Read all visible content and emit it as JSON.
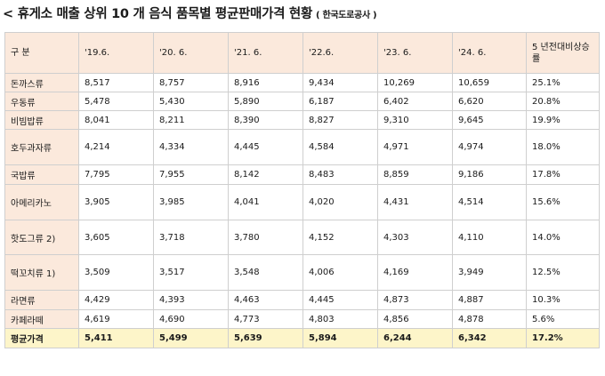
{
  "title": {
    "main": "< 휴게소 매출 상위 10 개 음식 품목별 평균판매가격 현황",
    "source": "( 한국도로공사 )"
  },
  "table": {
    "headers": [
      "구 분",
      "'19.6.",
      "'20. 6.",
      "'21. 6.",
      "'22.6.",
      "'23. 6.",
      "'24. 6.",
      "5 년전대비상승률"
    ],
    "rows": [
      {
        "name": "돈까스류",
        "values": [
          "8,517",
          "8,757",
          "8,916",
          "9,434",
          "10,269",
          "10,659",
          "25.1%"
        ]
      },
      {
        "name": "우동류",
        "values": [
          "5,478",
          "5,430",
          "5,890",
          "6,187",
          "6,402",
          "6,620",
          "20.8%"
        ]
      },
      {
        "name": "비빔밥류",
        "values": [
          "8,041",
          "8,211",
          "8,390",
          "8,827",
          "9,310",
          "9,645",
          "19.9%"
        ]
      },
      {
        "name": "호두과자류",
        "values": [
          "4,214",
          "4,334",
          "4,445",
          "4,584",
          "4,971",
          "4,974",
          "18.0%"
        ]
      },
      {
        "name": "국밥류",
        "values": [
          "7,795",
          "7,955",
          "8,142",
          "8,483",
          "8,859",
          "9,186",
          "17.8%"
        ]
      },
      {
        "name": "아메리카노",
        "values": [
          "3,905",
          "3,985",
          "4,041",
          "4,020",
          "4,431",
          "4,514",
          "15.6%"
        ]
      },
      {
        "name": "핫도그류 2)",
        "values": [
          "3,605",
          "3,718",
          "3,780",
          "4,152",
          "4,303",
          "4,110",
          "14.0%"
        ]
      },
      {
        "name": "떡꼬치류 1)",
        "values": [
          "3,509",
          "3,517",
          "3,548",
          "4,006",
          "4,169",
          "3,949",
          "12.5%"
        ]
      },
      {
        "name": "라면류",
        "values": [
          "4,429",
          "4,393",
          "4,463",
          "4,445",
          "4,873",
          "4,887",
          "10.3%"
        ]
      },
      {
        "name": "카페라떼",
        "values": [
          "4,619",
          "4,690",
          "4,773",
          "4,803",
          "4,856",
          "4,878",
          "5.6%"
        ]
      }
    ],
    "average": {
      "name": "평균가격",
      "values": [
        "5,411",
        "5,499",
        "5,639",
        "5,894",
        "6,244",
        "6,342",
        "17.2%"
      ]
    }
  }
}
